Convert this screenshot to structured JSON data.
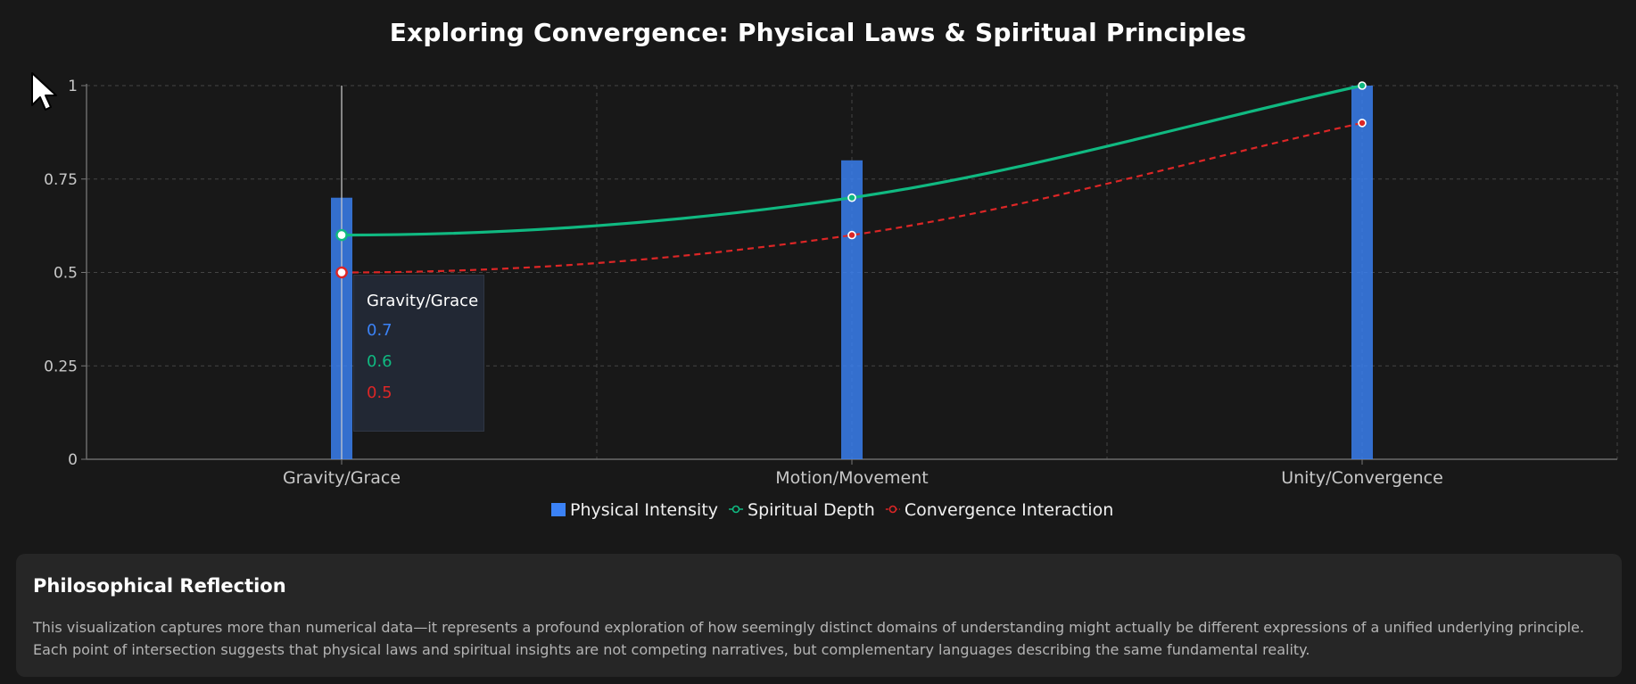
{
  "chart_data": {
    "type": "bar",
    "title": "Exploring Convergence: Physical Laws & Spiritual Principles",
    "categories": [
      "Gravity/Grace",
      "Motion/Movement",
      "Unity/Convergence"
    ],
    "series": [
      {
        "name": "Physical Intensity",
        "type": "bar",
        "values": [
          0.7,
          0.8,
          1.0
        ],
        "color": "#3b82f6"
      },
      {
        "name": "Spiritual Depth",
        "type": "line",
        "values": [
          0.6,
          0.7,
          1.0
        ],
        "color": "#10b981"
      },
      {
        "name": "Convergence Interaction",
        "type": "line",
        "dashed": true,
        "values": [
          0.5,
          0.6,
          0.9
        ],
        "color": "#dc2626"
      }
    ],
    "yticks": [
      "0",
      "0.25",
      "0.5",
      "0.75",
      "1"
    ],
    "ylim": [
      0,
      1
    ],
    "grid": true,
    "legend_position": "bottom"
  },
  "tooltip": {
    "category": "Gravity/Grace",
    "values": [
      "0.7",
      "0.6",
      "0.5"
    ]
  },
  "reflection": {
    "title": "Philosophical Reflection",
    "text": "This visualization captures more than numerical data—it represents a profound exploration of how seemingly distinct domains of understanding might actually be different expressions of a unified underlying principle. Each point of intersection suggests that physical laws and spiritual insights are not competing narratives, but complementary languages describing the same fundamental reality."
  }
}
